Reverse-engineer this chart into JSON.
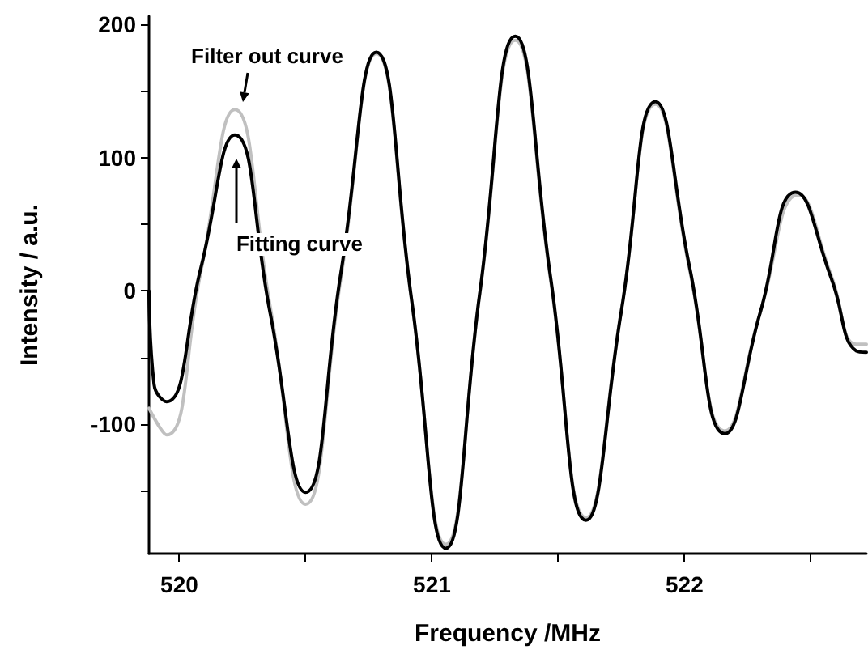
{
  "chart_data": {
    "type": "line",
    "xlabel": "Frequency /MHz",
    "ylabel": "Intensity / a.u.",
    "xlim": [
      519.88,
      522.72
    ],
    "ylim": [
      -197,
      206
    ],
    "xticks": [
      520,
      {
        "value": 520.5,
        "label": null
      },
      521,
      {
        "value": 521.5,
        "label": null
      },
      522,
      {
        "value": 522.5,
        "label": null
      }
    ],
    "yticks": [
      {
        "value": -150,
        "label": null
      },
      -100,
      {
        "value": -50,
        "label": null
      },
      0,
      {
        "value": 50,
        "label": null
      },
      100,
      {
        "value": 150,
        "label": null
      },
      200
    ],
    "grid": false,
    "marker": "none",
    "line_style": "solid",
    "series": [
      {
        "color": "#c0c0c0",
        "x": [
          519.88,
          519.95,
          520.085,
          520.22,
          520.36,
          520.5,
          520.64,
          520.78,
          520.92,
          521.055,
          521.19,
          521.33,
          521.47,
          521.61,
          521.75,
          521.885,
          522.02,
          522.16,
          522.3,
          522.45,
          522.58,
          522.68,
          522.72
        ],
        "values": [
          -88,
          -108,
          14,
          136,
          -12,
          -160,
          10,
          178,
          -8,
          -190,
          -2,
          188,
          8,
          -170,
          -14,
          140,
          16,
          -105,
          -16,
          72,
          12,
          -40,
          -40
        ]
      },
      {
        "color": "#000000",
        "x": [
          519.88,
          519.9,
          519.95,
          520.085,
          520.22,
          520.36,
          520.5,
          520.64,
          520.78,
          520.92,
          521.055,
          521.19,
          521.33,
          521.47,
          521.61,
          521.75,
          521.885,
          522.02,
          522.16,
          522.3,
          522.44,
          522.58,
          522.68,
          522.72
        ],
        "values": [
          0,
          -70,
          -83,
          17,
          117,
          -17,
          -151,
          14,
          179,
          -7,
          -193,
          -1,
          191,
          10,
          -172,
          -15,
          142,
          18,
          -107,
          -16,
          74,
          10,
          -45,
          -46
        ]
      }
    ],
    "annotations": [
      "Filter out curve",
      "Fitting curve"
    ]
  }
}
